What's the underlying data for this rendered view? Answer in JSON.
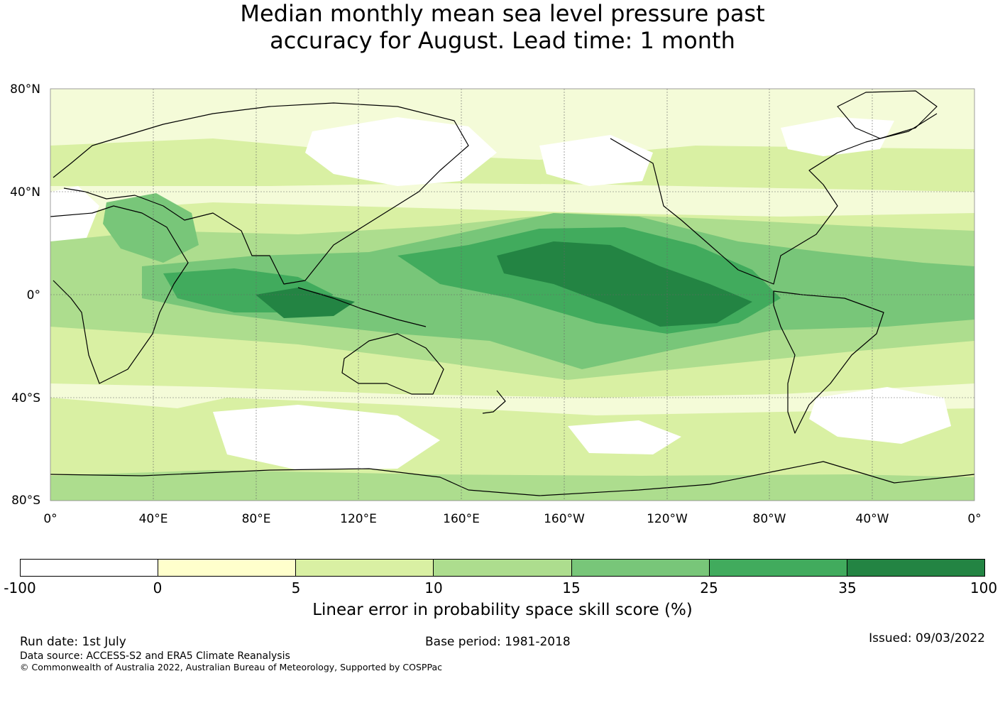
{
  "title": {
    "line1": "Median monthly mean sea level pressure past",
    "line2": "accuracy for August. Lead time: 1 month"
  },
  "map": {
    "lat_labels": [
      "80°N",
      "40°N",
      "0°",
      "40°S",
      "80°S"
    ],
    "lon_labels": [
      "0°",
      "40°E",
      "80°E",
      "120°E",
      "160°E",
      "160°W",
      "120°W",
      "80°W",
      "40°W",
      "0°"
    ],
    "lat_range": [
      -80,
      80
    ],
    "lon_range_east": [
      0,
      360
    ],
    "grid": true,
    "grid_spacing_deg": 40,
    "coastlines": true
  },
  "colorbar": {
    "label": "Linear error in probability space skill score (%)",
    "tick_labels": [
      "-100",
      "0",
      "5",
      "10",
      "15",
      "25",
      "35",
      "100"
    ],
    "colors": [
      "#ffffff",
      "#ffffcc",
      "#d9f0a3",
      "#addd8e",
      "#78c679",
      "#41ab5d",
      "#238443"
    ]
  },
  "footer": {
    "run_date": "Run date: 1st July",
    "base_period": "Base period: 1981-2018",
    "issued": "Issued: 09/03/2022",
    "data_source": "Data source: ACCESS-S2 and ERA5 Climate Reanalysis",
    "copyright": "© Commonwealth of Australia 2022, Australian Bureau of Meteorology, Supported by COSPPac"
  }
}
